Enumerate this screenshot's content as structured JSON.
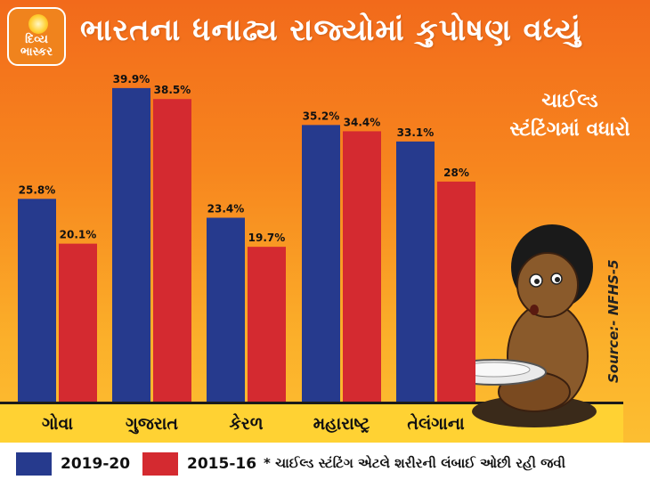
{
  "header": {
    "logo_line1": "દિવ્ય",
    "logo_line2": "ભાસ્કર",
    "title": "ભારતના ધનાઢ્ય રાજ્યોમાં કુપોષણ વધ્યું"
  },
  "side_note": {
    "line1": "ચાઈલ્ડ",
    "line2": "સ્ટંટિંગમાં વધારો"
  },
  "source": "Source:- NFHS-5",
  "footnote": "* ચાઈલ્ડ સ્ટંટિંગ એટલે શરીરની લંબાઈ ઓછી રહી જવી",
  "colors": {
    "series_2019": "#263a8d",
    "series_2015": "#d42a30"
  },
  "chart_data": {
    "type": "bar",
    "title": "ભારતના ધનાઢ્ય રાજ્યોમાં કુપોષણ વધ્યું",
    "categories": [
      "ગોવા",
      "ગુજરાત",
      "કેરળ",
      "મહારાષ્ટ્ર",
      "તેલંગાના"
    ],
    "series": [
      {
        "name": "2019-20",
        "values": [
          25.8,
          39.9,
          23.4,
          35.2,
          33.1
        ],
        "labels": [
          "25.8%",
          "39.9%",
          "23.4%",
          "35.2%",
          "33.1%"
        ],
        "color": "#263a8d"
      },
      {
        "name": "2015-16",
        "values": [
          20.1,
          38.5,
          19.7,
          34.4,
          28.0
        ],
        "labels": [
          "20.1%",
          "38.5%",
          "19.7%",
          "34.4%",
          "28%"
        ],
        "color": "#d42a30"
      }
    ],
    "ylim": [
      0,
      40
    ],
    "xlabel": "",
    "ylabel": "",
    "grid": false,
    "legend": "bottom-left"
  }
}
